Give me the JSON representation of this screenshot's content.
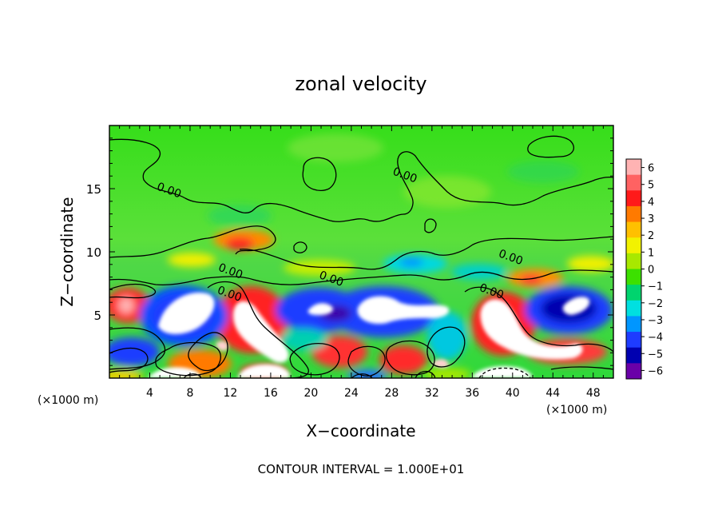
{
  "chart_data": {
    "type": "heatmap",
    "title": "zonal velocity",
    "xlabel": "X−coordinate",
    "ylabel": "Z−coordinate",
    "x_unit_left": "(×1000 m)",
    "x_unit_right": "(×1000 m)",
    "footer": "CONTOUR INTERVAL = 1.000E+01",
    "xlim": [
      0,
      50
    ],
    "ylim": [
      0,
      20
    ],
    "x_ticks": [
      {
        "value": 4,
        "label": "4"
      },
      {
        "value": 8,
        "label": "8"
      },
      {
        "value": 12,
        "label": "12"
      },
      {
        "value": 16,
        "label": "16"
      },
      {
        "value": 20,
        "label": "20"
      },
      {
        "value": 24,
        "label": "24"
      },
      {
        "value": 28,
        "label": "28"
      },
      {
        "value": 32,
        "label": "32"
      },
      {
        "value": 36,
        "label": "36"
      },
      {
        "value": 40,
        "label": "40"
      },
      {
        "value": 44,
        "label": "44"
      },
      {
        "value": 48,
        "label": "48"
      }
    ],
    "y_ticks": [
      {
        "value": 5,
        "label": "5"
      },
      {
        "value": 10,
        "label": "10"
      },
      {
        "value": 15,
        "label": "15"
      }
    ],
    "colorbar": {
      "labels": [
        "6",
        "5",
        "4",
        "3",
        "2",
        "1",
        "0",
        "−1",
        "−2",
        "−3",
        "−4",
        "−5",
        "−6"
      ],
      "colors": [
        "#ffb3b3",
        "#ff6262",
        "#ff1a1a",
        "#ff7a00",
        "#ffc000",
        "#f2f200",
        "#a8e800",
        "#3ce000",
        "#00d46e",
        "#00e0e0",
        "#0096ff",
        "#1e3cff",
        "#0000b0",
        "#6a00a8"
      ]
    },
    "contour_labels": [
      {
        "text": "0.00",
        "x": 5.8,
        "z": 14.6
      },
      {
        "text": "0.00",
        "x": 29.2,
        "z": 15.8
      },
      {
        "text": "0.00",
        "x": 11.9,
        "z": 8.2
      },
      {
        "text": "0.00",
        "x": 11.8,
        "z": 6.4
      },
      {
        "text": "0.00",
        "x": 21.9,
        "z": 7.6
      },
      {
        "text": "0.00",
        "x": 39.7,
        "z": 9.3
      },
      {
        "text": "0.00",
        "x": 37.8,
        "z": 6.6
      }
    ]
  }
}
